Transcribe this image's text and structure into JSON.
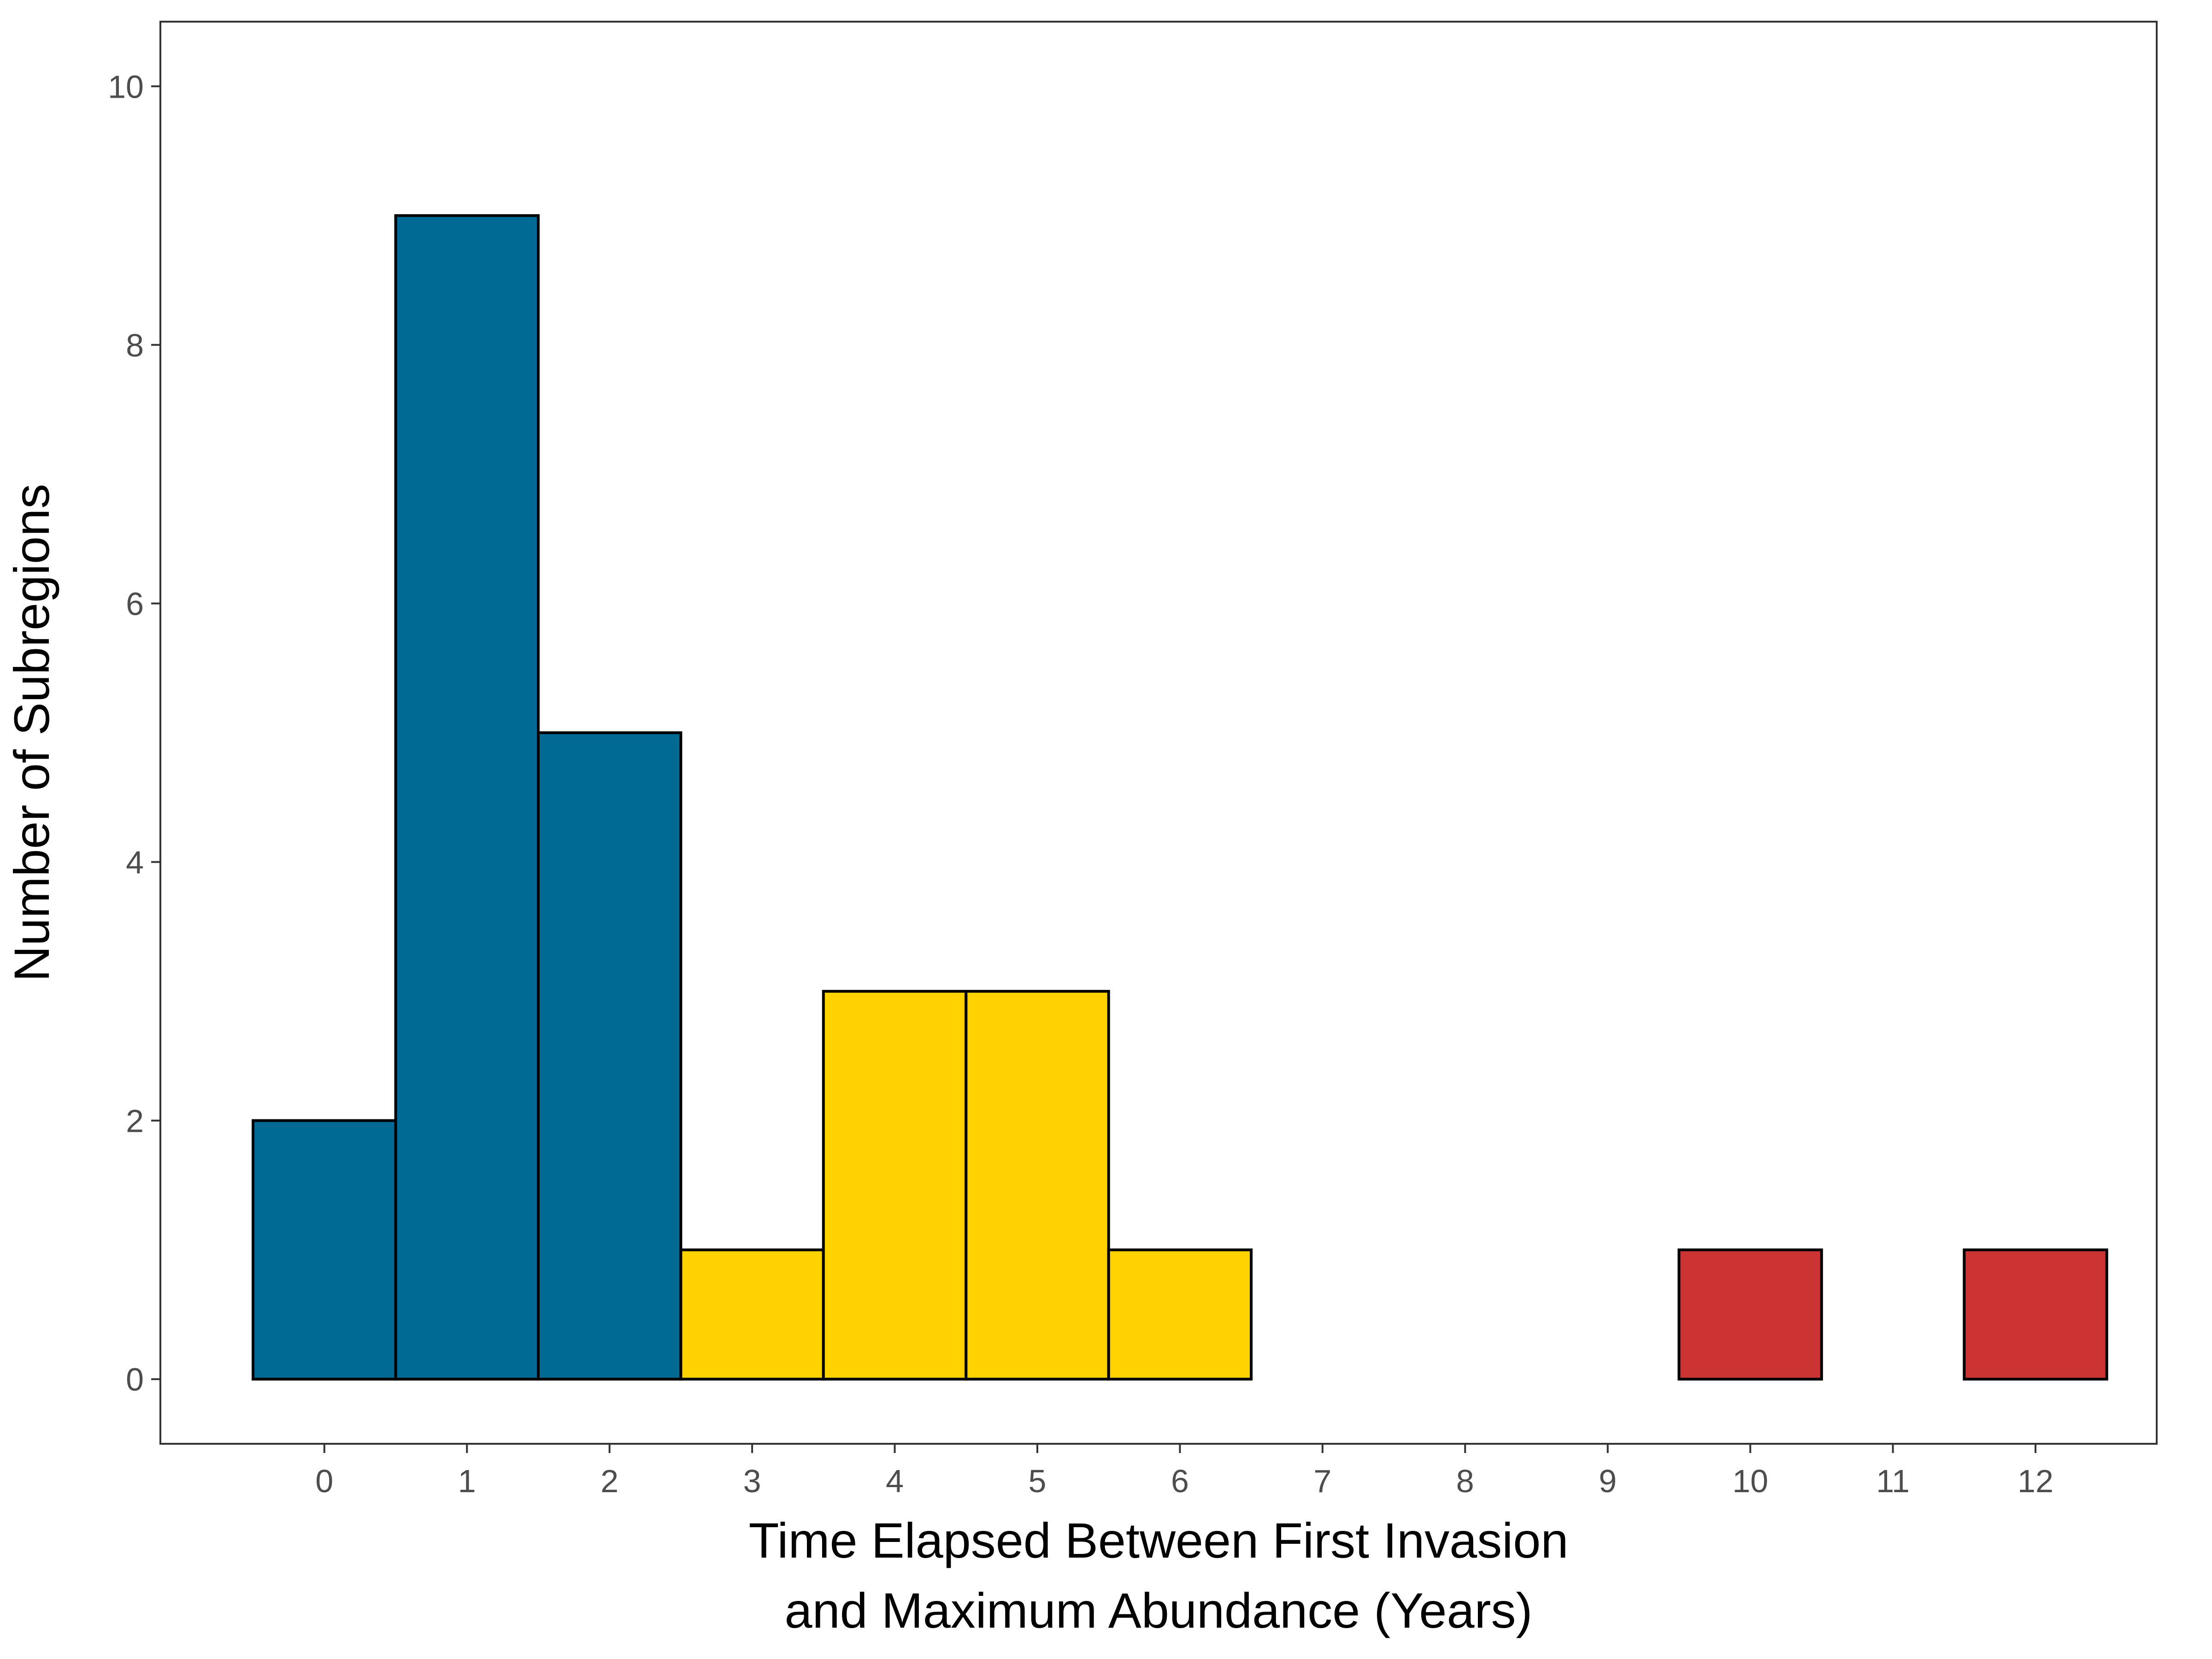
{
  "chart_data": {
    "type": "bar",
    "title": "",
    "xlabel_lines": [
      "Time Elapsed Between First Invasion",
      "and Maximum Abundance (Years)"
    ],
    "ylabel": "Number of Subregions",
    "x_ticks": [
      "0",
      "1",
      "2",
      "3",
      "4",
      "5",
      "6",
      "7",
      "8",
      "9",
      "10",
      "11",
      "12"
    ],
    "y_ticks": [
      "0",
      "2",
      "4",
      "6",
      "8",
      "10"
    ],
    "xlim": [
      -1.15,
      12.85
    ],
    "ylim": [
      -0.5,
      10.5
    ],
    "grid": false,
    "bin_width": 1,
    "bins": [
      {
        "x": 0,
        "count": 2,
        "color": "#006994"
      },
      {
        "x": 1,
        "count": 9,
        "color": "#006994"
      },
      {
        "x": 2,
        "count": 5,
        "color": "#006994"
      },
      {
        "x": 3,
        "count": 1,
        "color": "#FFD200"
      },
      {
        "x": 4,
        "count": 3,
        "color": "#FFD200"
      },
      {
        "x": 5,
        "count": 3,
        "color": "#FFD200"
      },
      {
        "x": 6,
        "count": 1,
        "color": "#FFD200"
      },
      {
        "x": 7,
        "count": 0,
        "color": "#FFD200"
      },
      {
        "x": 8,
        "count": 0,
        "color": "#FFD200"
      },
      {
        "x": 9,
        "count": 0,
        "color": "#FFD200"
      },
      {
        "x": 10,
        "count": 1,
        "color": "#CC3333"
      },
      {
        "x": 11,
        "count": 0,
        "color": "#CC3333"
      },
      {
        "x": 12,
        "count": 1,
        "color": "#CC3333"
      }
    ],
    "bar_outline_color": "#000000",
    "panel_border_color": "#333333",
    "tick_color": "#333333"
  }
}
